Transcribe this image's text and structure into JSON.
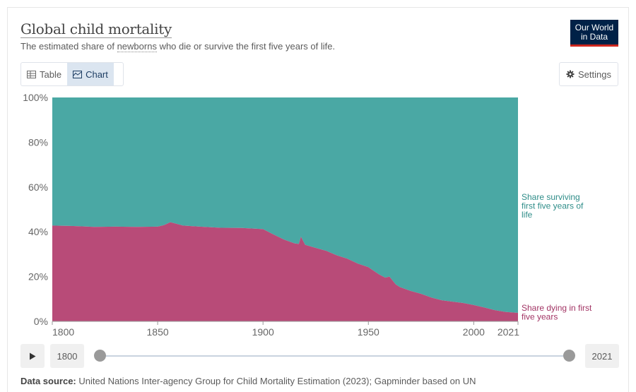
{
  "header": {
    "title": "Global child mortality",
    "subtitle_prefix": "The estimated share of ",
    "subtitle_link": "newborns",
    "subtitle_suffix": " who die or survive the first five years of life.",
    "logo_line1": "Our World",
    "logo_line2": "in Data"
  },
  "tabs": [
    {
      "label": "Table",
      "icon": "table-icon",
      "active": false
    },
    {
      "label": "Chart",
      "icon": "chart-icon",
      "active": true
    }
  ],
  "settings_label": "Settings",
  "timeline": {
    "start_year": "1800",
    "end_year": "2021"
  },
  "source": {
    "label": "Data source:",
    "text": "United Nations Inter-agency Group for Child Mortality Estimation (2023); Gapminder based on UN"
  },
  "colors": {
    "surviving": "#4aa8a4",
    "dying": "#b84b78",
    "surviving_label": "#2f8d89",
    "dying_label": "#a23464"
  },
  "chart_data": {
    "type": "area",
    "stacked": true,
    "percent": true,
    "x": [
      1800,
      1810,
      1820,
      1830,
      1840,
      1850,
      1853,
      1856,
      1858,
      1862,
      1870,
      1880,
      1890,
      1900,
      1905,
      1910,
      1915,
      1917,
      1918,
      1920,
      1925,
      1930,
      1935,
      1940,
      1945,
      1950,
      1955,
      1958,
      1960,
      1963,
      1965,
      1970,
      1975,
      1980,
      1985,
      1990,
      1995,
      2000,
      2005,
      2010,
      2015,
      2021
    ],
    "series": [
      {
        "name": "Share dying in first five years",
        "color": "#b84b78",
        "values": [
          42.8,
          42.6,
          42.2,
          42.3,
          42.2,
          42.3,
          43.0,
          44.3,
          43.8,
          42.8,
          42.3,
          41.8,
          41.7,
          41.2,
          38.8,
          36.5,
          34.8,
          34.6,
          37.8,
          34.2,
          32.8,
          31.5,
          29.5,
          28.0,
          25.8,
          24.2,
          21.0,
          19.5,
          20.0,
          16.5,
          15.3,
          13.6,
          12.3,
          10.6,
          9.4,
          8.8,
          8.2,
          7.3,
          6.2,
          5.0,
          4.2,
          3.8
        ]
      },
      {
        "name": "Share surviving first five years of life",
        "color": "#4aa8a4",
        "values": [
          57.2,
          57.4,
          57.8,
          57.7,
          57.8,
          57.7,
          57.0,
          55.7,
          56.2,
          57.2,
          57.7,
          58.2,
          58.3,
          58.8,
          61.2,
          63.5,
          65.2,
          65.4,
          62.2,
          65.8,
          67.2,
          68.5,
          70.5,
          72.0,
          74.2,
          75.8,
          79.0,
          80.5,
          80.0,
          83.5,
          84.7,
          86.4,
          87.7,
          89.4,
          90.6,
          91.2,
          91.8,
          92.7,
          93.8,
          95.0,
          95.8,
          96.2
        ]
      }
    ],
    "xticks": [
      "1800",
      "1850",
      "1900",
      "1950",
      "2000",
      "2021"
    ],
    "yticks": [
      "0%",
      "20%",
      "40%",
      "60%",
      "80%",
      "100%"
    ],
    "ylim": [
      0,
      100
    ],
    "xlim": [
      1800,
      2021
    ],
    "labels": {
      "surviving": [
        "Share surviving",
        "first five years of",
        "life"
      ],
      "dying": [
        "Share dying in first",
        "five years"
      ]
    }
  }
}
